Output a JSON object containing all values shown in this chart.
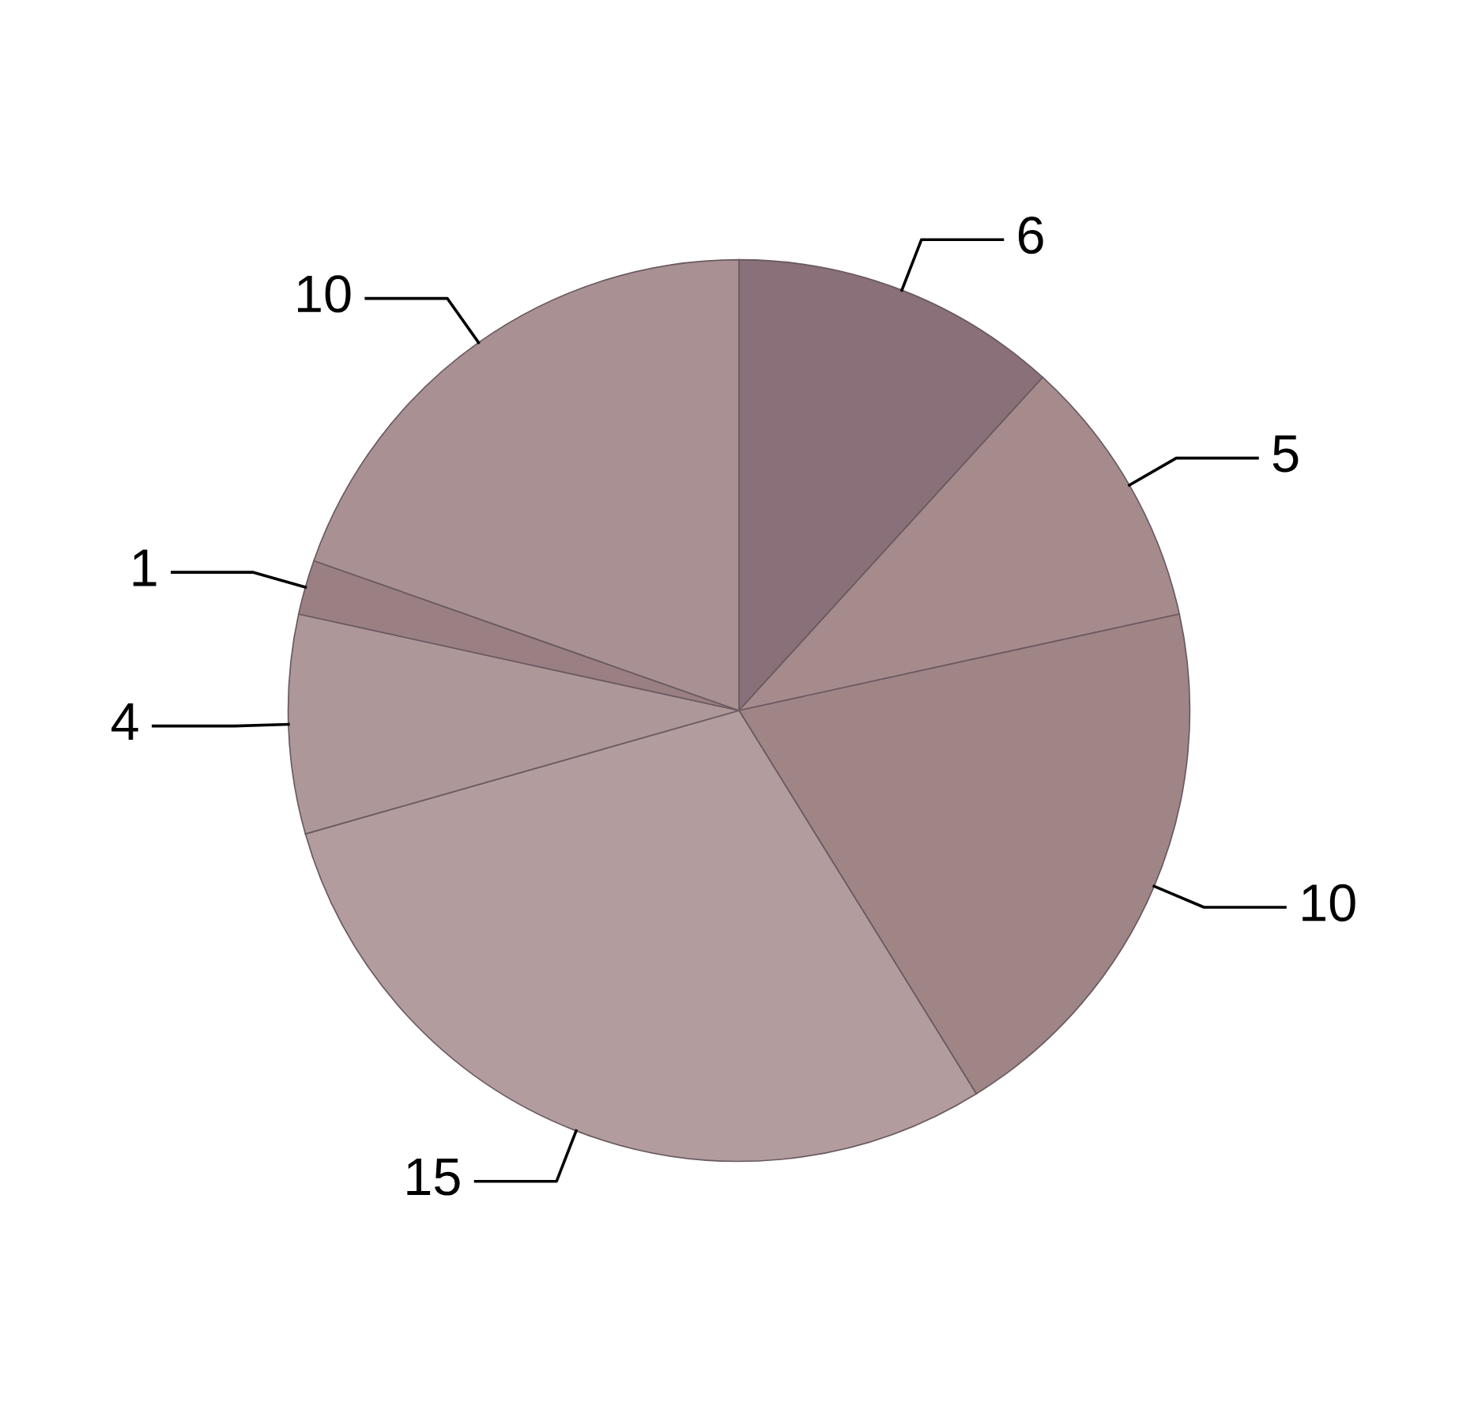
{
  "chart_data": {
    "type": "pie",
    "categories": [
      null,
      null,
      null,
      null,
      null,
      null,
      null
    ],
    "values": [
      6,
      5,
      10,
      15,
      4,
      1,
      10
    ],
    "colors": [
      "#8a7078",
      "#a58b8c",
      "#9f8586",
      "#b29c9e",
      "#ad9799",
      "#9a8083",
      "#a99193"
    ],
    "data_labels": true,
    "legend": false
  }
}
